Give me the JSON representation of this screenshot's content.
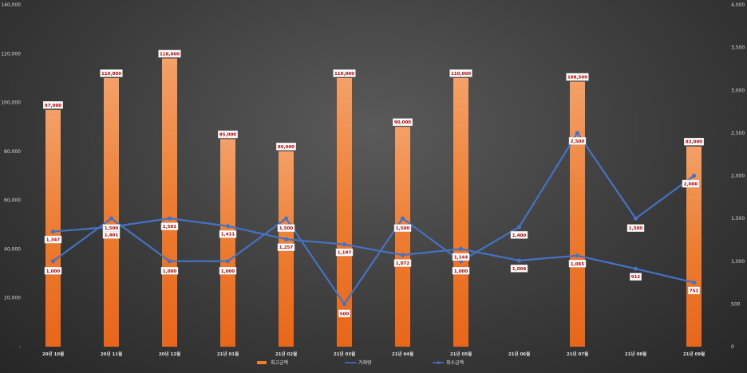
{
  "chart_data": {
    "type": "bar",
    "categories": [
      "20년 10월",
      "20년 11월",
      "20년 12월",
      "21년 01월",
      "21년 02월",
      "21년 03월",
      "21년 04월",
      "21년 05월",
      "21년 06월",
      "21년 07월",
      "21년 08월",
      "21년 09월"
    ],
    "series": [
      {
        "name": "최고금액",
        "type": "bar",
        "axis": "left",
        "color": "#ED7D31",
        "values": [
          97000,
          110000,
          118000,
          85000,
          80000,
          110000,
          90000,
          110000,
          null,
          108500,
          null,
          82000
        ],
        "labels": [
          "97,000",
          "110,000",
          "118,000",
          "85,000",
          "80,000",
          "110,000",
          "90,000",
          "110,000",
          "",
          "108,500",
          "",
          "82,000"
        ]
      },
      {
        "name": "거래량",
        "type": "line",
        "axis": "right",
        "color": "#4472C4",
        "values": [
          1000,
          1500,
          1000,
          1000,
          1500,
          500,
          1500,
          1000,
          1400,
          2500,
          1500,
          2000
        ],
        "labels": [
          "1,000",
          "1,500",
          "1,000",
          "1,000",
          "1,500",
          "500",
          "1,500",
          "1,000",
          "1,400",
          "2,500",
          "1,500",
          "2,000"
        ]
      },
      {
        "name": "최소금액",
        "type": "line",
        "axis": "right",
        "color": "#4472C4",
        "values": [
          1347,
          1401,
          1501,
          1411,
          1257,
          1197,
          1072,
          1144,
          1008,
          1065,
          912,
          751
        ],
        "labels": [
          "1,347",
          "1,401",
          "1,501",
          "1,411",
          "1,257",
          "1,197",
          "1,072",
          "1,144",
          "1,008",
          "1,065",
          "912",
          "751"
        ]
      }
    ],
    "title": "",
    "xlabel": "",
    "ylabel": "",
    "ylim": [
      0,
      140000
    ],
    "y2lim": [
      0,
      4000
    ],
    "yticks": [
      "-",
      "20,000",
      "40,000",
      "60,000",
      "80,000",
      "100,000",
      "120,000",
      "140,000"
    ],
    "y2ticks": [
      "0",
      "500",
      "1,000",
      "1,500",
      "2,000",
      "2,500",
      "3,000",
      "3,500",
      "4,000"
    ],
    "legend_position": "bottom",
    "grid": false
  }
}
